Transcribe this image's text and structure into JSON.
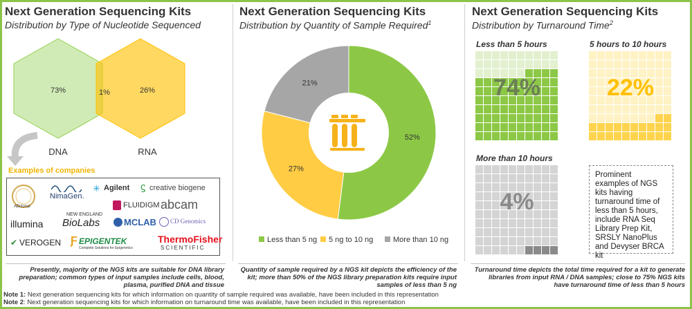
{
  "panel1": {
    "title": "Next Generation Sequencing Kits",
    "subtitle": "Distribution by Type of Nucleotide Sequenced",
    "examples_label": "Examples of companies",
    "companies": [
      "ABclonal",
      "NimaGen.",
      "Agilent",
      "creative biogene",
      "FLUIDIGM",
      "abcam",
      "illumina",
      "NEW ENGLAND",
      "BioLabs",
      "MCLAB",
      "CD Genomics",
      "VEROGEN",
      "EPIGENTEK",
      "Complete Solutions for Epigenetics",
      "ThermoFisher",
      "SCIENTIFIC"
    ],
    "caption": "Presently, majority of the NGS kits are suitable for DNA library preparation; common types of input samples include cells, blood, plasma, purified DNA and tissue"
  },
  "panel2": {
    "title": "Next Generation Sequencing Kits",
    "subtitle": "Distribution by Quantity of Sample Required",
    "subtitle_sup": "1",
    "caption": "Quantity of sample required by a NGS kit depicts the efficiency of the kit; more than 50% of the NGS library preparation kits require input samples of less than 5 ng"
  },
  "panel3": {
    "title": "Next Generation Sequencing Kits",
    "subtitle": "Distribution by Turnaround Time",
    "subtitle_sup": "2",
    "text_box": "Prominent examples of NGS kits having turnaround time of less than 5 hours, include RNA Seq Library Prep Kit, SRSLY NanoPlus and Devyser BRCA kit",
    "caption": "Turnaround time depicts the total time required for a kit to generate libraries from input RNA / DNA samples; close to 75% NGS kits have turnaround time of less than 5 hours"
  },
  "notes": [
    {
      "label": "Note 1:",
      "text": " Next generation sequencing kits for which information on quantity of sample required was available, have been included in this representation"
    },
    {
      "label": "Note 2",
      "text": ": Next generation sequencing kits for which information on turnaround time was available, have been included in this representation"
    }
  ],
  "chart_data": [
    {
      "type": "venn",
      "title": "Distribution by Type of Nucleotide Sequenced",
      "sets": [
        {
          "name": "DNA",
          "value": "73%",
          "color": "#92d050"
        },
        {
          "name": "RNA",
          "value": "26%",
          "color": "#ffc000"
        }
      ],
      "overlap": {
        "value": "1%"
      }
    },
    {
      "type": "pie",
      "variant": "donut",
      "title": "Distribution by Quantity of Sample Required",
      "slices": [
        {
          "name": "Less than 5 ng",
          "value": 52,
          "label": "52%",
          "color": "#8cc846"
        },
        {
          "name": "5 ng to 10 ng",
          "value": 27,
          "label": "27%",
          "color": "#ffcc44"
        },
        {
          "name": "More than 10 ng",
          "value": 21,
          "label": "21%",
          "color": "#a6a6a6"
        }
      ]
    },
    {
      "type": "waffle",
      "title": "Distribution by Turnaround Time",
      "cells_per_grid": 100,
      "grids": [
        {
          "name": "Less than 5 hours",
          "value": 74,
          "label": "74%",
          "color": "#8cc846",
          "light": "#e2f0cf",
          "label_color": "#6b7f55"
        },
        {
          "name": "5 hours to 10 hours",
          "value": 22,
          "label": "22%",
          "color": "#ffd34d",
          "light": "#fff2c4",
          "label_color": "#ffc000"
        },
        {
          "name": "More than 10 hours",
          "value": 4,
          "label": "4%",
          "color": "#8a8a8a",
          "light": "#d4d4d4",
          "label_color": "#8a8a8a"
        }
      ]
    }
  ]
}
